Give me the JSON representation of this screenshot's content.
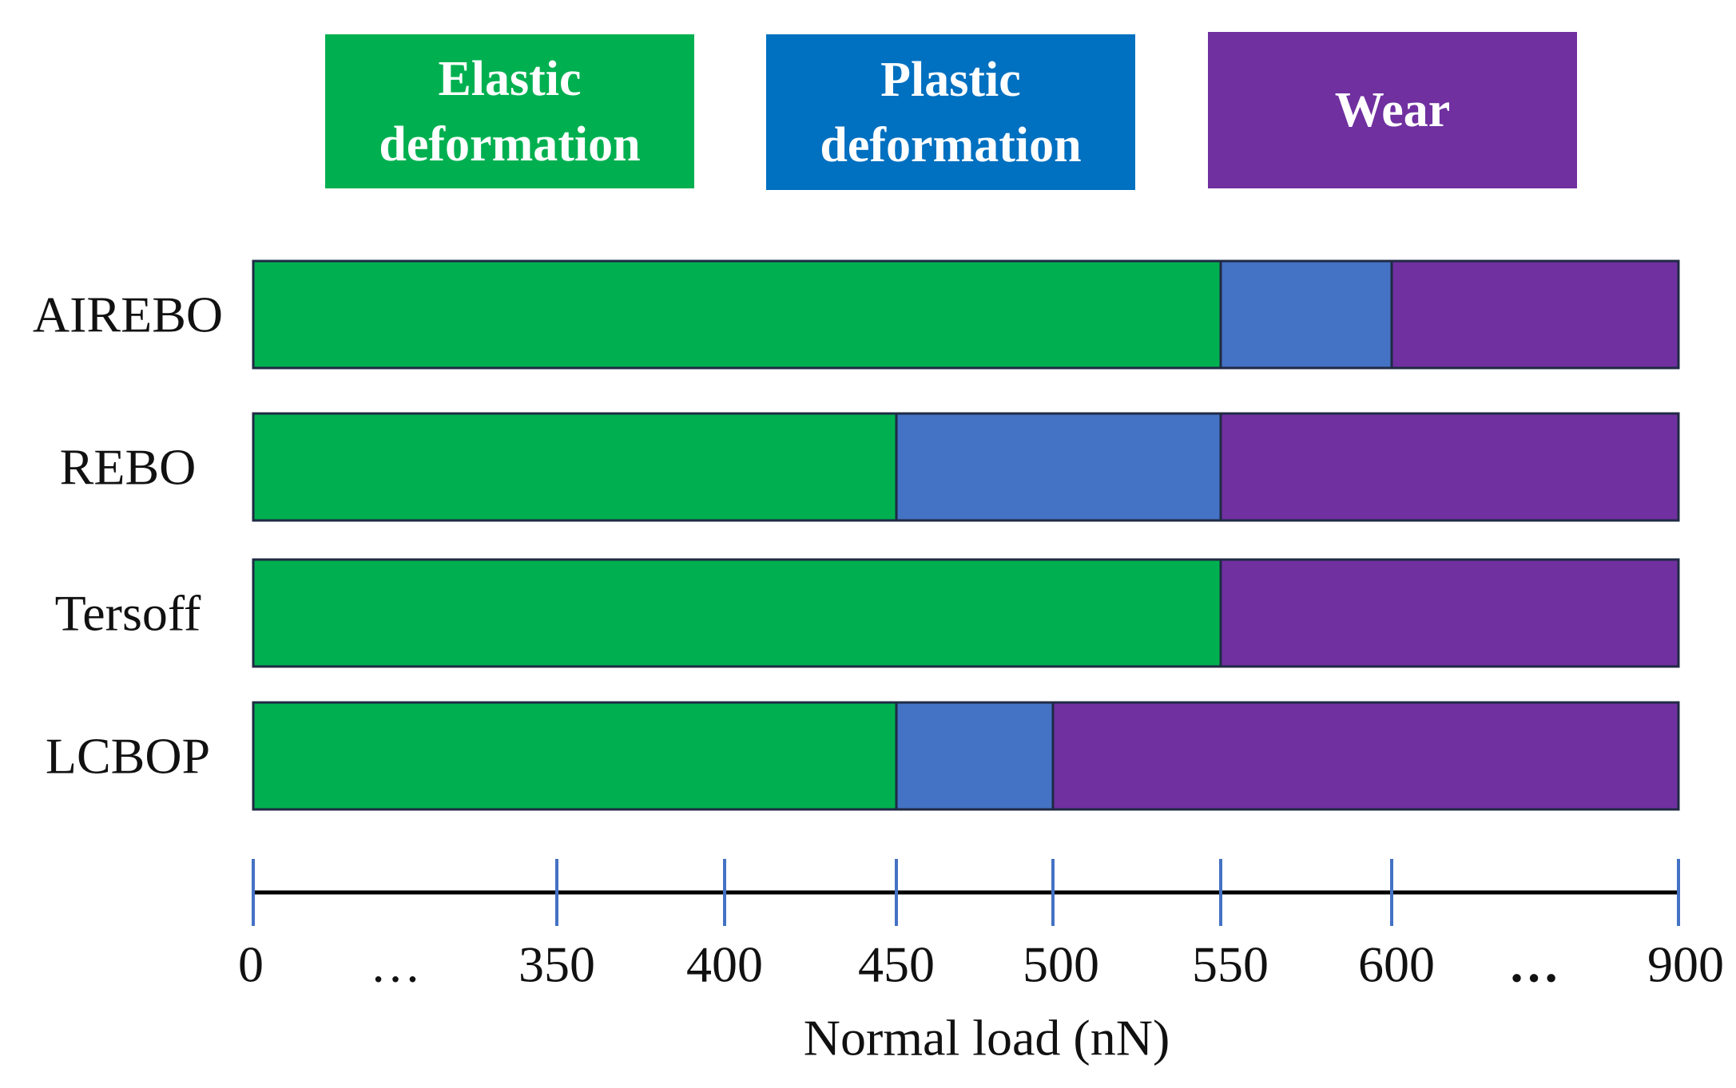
{
  "chart_data": {
    "type": "bar",
    "orientation": "horizontal-stacked",
    "xlabel": "Normal load (nN)",
    "tick_labels": [
      "0",
      "…",
      "350",
      "400",
      "450",
      "500",
      "550",
      "600",
      "…",
      "900"
    ],
    "axis_points": [
      0,
      350,
      400,
      450,
      500,
      550,
      600,
      900
    ],
    "legend": [
      {
        "label": "Elastic\ndeformation",
        "color": "#00b050"
      },
      {
        "label": "Plastic\ndeformation",
        "color": "#4472c4"
      },
      {
        "label": "Wear",
        "color": "#7030a0"
      }
    ],
    "legend_box_colors": [
      "#00b050",
      "#0070c0",
      "#7030a0"
    ],
    "categories": [
      "AIREBO",
      "REBO",
      "Tersoff",
      "LCBOP"
    ],
    "series": [
      {
        "name": "AIREBO",
        "segments": [
          {
            "phase": "Elastic deformation",
            "from": 0,
            "to": 550
          },
          {
            "phase": "Plastic deformation",
            "from": 550,
            "to": 600
          },
          {
            "phase": "Wear",
            "from": 600,
            "to": 900
          }
        ]
      },
      {
        "name": "REBO",
        "segments": [
          {
            "phase": "Elastic deformation",
            "from": 0,
            "to": 450
          },
          {
            "phase": "Plastic deformation",
            "from": 450,
            "to": 550
          },
          {
            "phase": "Wear",
            "from": 550,
            "to": 900
          }
        ]
      },
      {
        "name": "Tersoff",
        "segments": [
          {
            "phase": "Elastic deformation",
            "from": 0,
            "to": 550
          },
          {
            "phase": "Wear",
            "from": 550,
            "to": 900
          }
        ]
      },
      {
        "name": "LCBOP",
        "segments": [
          {
            "phase": "Elastic deformation",
            "from": 0,
            "to": 450
          },
          {
            "phase": "Plastic deformation",
            "from": 450,
            "to": 500
          },
          {
            "phase": "Wear",
            "from": 500,
            "to": 900
          }
        ]
      }
    ]
  }
}
